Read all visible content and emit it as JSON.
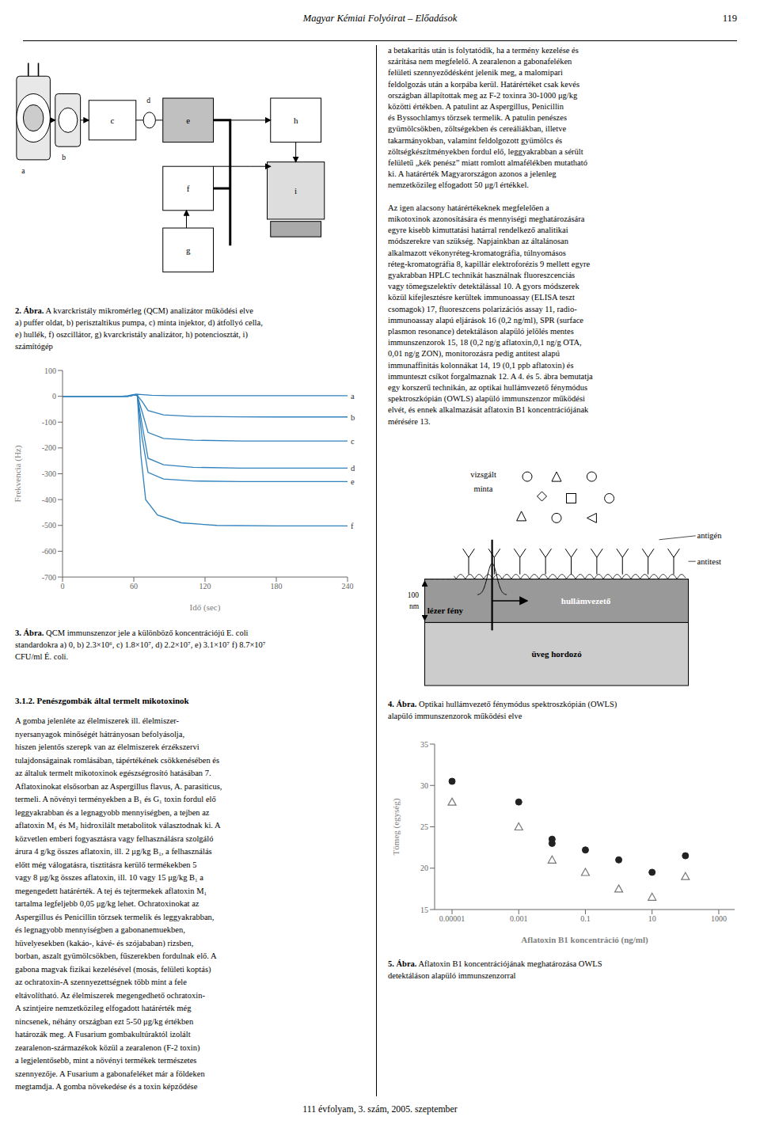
{
  "page_title": "Magyar Kémiai Folyóirat – Előadások",
  "page_number": "119",
  "footer_text": "111 évfolyam, 3. szám, 2005. szeptember",
  "section_title": "3.1.2. Penészgombák által termelt mikotoxinok",
  "left_text": [
    "A gomba jelenléte az élelmiszerek ill. élelmiszer-",
    "nyersanyagok minőségét hátrányosan befolyásolja,",
    "hiszen jelentős szerepk van az élelmiszerek érzékszervi",
    "tulajdonságainak romlásában, tápértékének csökkenésében és",
    "az általuk termelt mikotoxinok egészségrosító hatásában 7.",
    "Aflatoxinokat elsősorban az Aspergillus flavus, A. parasiticus,",
    "termeli. A növényi terményekben a B₁ és G₁ toxin fordul elő",
    "leggyakrabban és a legnagyobb mennyiségben, a tejben az",
    "aflatoxin M₁ és M₂ hidroxilált metabolitok választodnak ki. A",
    "közvetlen emberi fogyasztásra vagy felhasználásra szolgáló",
    "árura 4 g/kg összes aflatoxin, ill. 2 μg/kg B₁, a felhasználás",
    "előtt még válogatásra, tisztitásra kerülő termékekben 5",
    "vagy 8 μg/kg összes aflatoxin, ill. 10 vagy 15 μg/kg B₁ a",
    "megengedett határérték. A tej és tejtermekek aflatoxin M₁",
    "tartalma legfeljebb 0,05 μg/kg lehet. Ochratoxinokat az",
    "Aspergillus és Penicillin törzsek termelik és leggyakrabban,",
    "és legnagyobb mennyiségben a gabonanemuekben,",
    "hüvelyesekben (kakáo-, kávé- és szójababan) rizsben,",
    "borban, aszalt gyümölcsökben, fűszerekben fordulnak elő. A",
    "gabona magvak fizikai kezelésével (mosás, felületi koptás)",
    "az ochratoxin-A szennyezettségnek több mint a fele",
    "eltávolítható. Az élelmiszerek megengedhető ochratoxin-",
    "A szintjeire nemzetközileg elfogadott határérték még",
    "nincsenek, néhány országban ezt 5-50 μg/kg értékben",
    "határozák meg. A Fusarium gombakultúraktól izolált",
    "zearalenon-származékok közül a zearalenon (F-2 toxin)",
    "a legjelentősebb, mint a növényi termékek természetes",
    "szennyezője. A Fusarium a gabonafeléket már a földeken",
    "megtamdja. A gomba növekedése és a toxin képződése"
  ],
  "right_text": [
    [
      "a betakarítás után is folytatódik, ha a termény kezelése és",
      "szárítása nem megfelelő. A zearalenon a gabonafeléken",
      "felületi szennyeződésként jelenik meg, a malomipari",
      "feldolgozás után a korpába kerül. Határértéket csak kevés",
      "országban állapítottak meg az F-2 toxinra 30-1000 μg/kg",
      "közötti értékben. A patulint az Aspergillus, Penicillin",
      "és Byssochlamys törzsek termelik. A patulin penészes",
      "gyümölcsökben, zöltségekben és cereáliákban, illetve",
      "takarmányokban, valamint feldolgozott gyümölcs és",
      "zöltségkészítményekben fordul elő, leggyakrabban a sérült",
      "felületű „kék penész” miatt romlott almafélékben mutatható",
      "ki. A határérték Magyarországon azonos a jelenleg",
      "nemzetközileg elfogadott 50 μg/l értékkel."
    ],
    [
      "Az igen alacsony határértékeknek megfelelően a",
      "mikotoxinok azonosítására és mennyiségi meghatározására",
      "egyre kisebb kimuttatási határral rendelkező analitikai",
      "módszerekre van szükség. Napjainkban az általánosan",
      "alkalmazott vékonyréteg-kromatográfia, túlnyomásos",
      "réteg-kromatográfia 8, kapillár elektroforézis 9 mellett egyre",
      "gyakrabban HPLC technikát használnak fluoreszcenciás",
      "vagy tömegszelektív detektálással 10. A gyors módszerek",
      "közül kifejlesztésre kerültek immunoassay (ELISA teszt",
      "csomagok) 17, fluoreszcens polarizációs assay 11, radio-",
      "immunoassay alapú eljárások 16 (0,2 ng/ml), SPR (surface",
      "plasmon resonance) detektáláson alapüló jelölés mentes",
      "immunszenzorok 15, 18 (0,2 ng/g aflatoxin,0,1 ng/g OTA,",
      "0,01 ng/g ZON), monitorozásra pedig antitest alapú",
      "immunaffinitás kolonnákat 14, 19 (0,1 ppb aflatoxin) és",
      "immunteszt csíkot forgalmaznak 12. A 4. és 5. ábra bemutatja",
      "egy korszerű technikán, az optikai hullámvezető fénymódus",
      "spektroszkópián (OWLS) alapüló immunszenzor működési",
      "elvét, és ennek alkalmazását aflatoxin B1 koncentrációjának",
      "mérésére 13."
    ]
  ],
  "captions": [
    {
      "bold": "2. Ábra.",
      "lines": [
        "A kvarckristály mikromérleg (QCM) analizátor működési elve",
        "a) puffer oldat, b) perisztaltikus pumpa, c) minta injektor, d) átfollyó cella,",
        "e) hullék, f) oszcillátor, g) kvarckristály analizátor, h) potenciosztát, i)",
        "számítógép"
      ]
    },
    {
      "bold": "3. Ábra.",
      "lines": [
        "QCM immunszenzor jele a különböző koncentrációjú E. coli",
        "standardokra a) 0, b) 2.3×10⁶, c) 1.8×10⁷, d) 2.2×10⁷, e) 3.1×10⁷ f) 8.7×10⁷",
        "CFU/ml É. coli."
      ]
    },
    {
      "bold": "4. Ábra.",
      "lines": [
        "Optikai hullámvezető fénymódus spektroszkópián (OWLS)",
        "alapüló immunszenzorok működési elve"
      ]
    },
    {
      "bold": "5. Ábra.",
      "lines": [
        "Aflatoxin B1 koncentrációjának meghatározása OWLS",
        "detektáláson alapüló immunszenzorral"
      ]
    }
  ],
  "diagram_labels": {
    "qcm": [
      "a",
      "b",
      "c",
      "d",
      "e",
      "f",
      "g",
      "h",
      "i"
    ],
    "owls": [
      "üveg hordozó",
      "hullámvezető",
      "100",
      "nm",
      "antitest",
      "antigén",
      "vizsgált",
      "minta",
      "lézer fény"
    ]
  },
  "chart_data": [
    {
      "type": "line",
      "x_label": "Idő (sec)",
      "y_label": "Frekvencia (Hz)",
      "xlim": [
        0,
        240
      ],
      "ylim": [
        -700,
        100
      ],
      "xticks": [
        0,
        60,
        120,
        180,
        240
      ],
      "yticks": [
        100,
        0,
        -100,
        -200,
        -300,
        -400,
        -500,
        -600,
        -700
      ],
      "grid": false,
      "series": [
        {
          "name": "a",
          "x": [
            0,
            50,
            55,
            62,
            68,
            75,
            90,
            120,
            180,
            240
          ],
          "values": [
            0,
            0,
            2,
            8,
            6,
            4,
            2,
            2,
            2,
            2
          ]
        },
        {
          "name": "b",
          "x": [
            0,
            55,
            60,
            63,
            67,
            72,
            85,
            110,
            150,
            180,
            240
          ],
          "values": [
            0,
            0,
            5,
            3,
            -20,
            -55,
            -72,
            -78,
            -80,
            -80,
            -80
          ]
        },
        {
          "name": "c",
          "x": [
            0,
            55,
            60,
            63,
            67,
            72,
            85,
            110,
            150,
            180,
            240
          ],
          "values": [
            0,
            0,
            5,
            3,
            -60,
            -140,
            -163,
            -170,
            -173,
            -173,
            -173
          ]
        },
        {
          "name": "d",
          "x": [
            0,
            55,
            60,
            63,
            67,
            72,
            85,
            110,
            150,
            180,
            240
          ],
          "values": [
            0,
            0,
            5,
            3,
            -110,
            -240,
            -265,
            -275,
            -278,
            -278,
            -278
          ]
        },
        {
          "name": "e",
          "x": [
            0,
            55,
            60,
            63,
            67,
            72,
            85,
            110,
            150,
            180,
            240
          ],
          "values": [
            0,
            0,
            5,
            3,
            -160,
            -295,
            -320,
            -328,
            -330,
            -330,
            -330
          ]
        },
        {
          "name": "f",
          "x": [
            0,
            55,
            60,
            63,
            66,
            70,
            80,
            100,
            130,
            180,
            240
          ],
          "values": [
            0,
            0,
            5,
            3,
            -230,
            -400,
            -460,
            -490,
            -500,
            -502,
            -502
          ]
        }
      ]
    },
    {
      "type": "scatter",
      "log": "x",
      "x_label": "Aflatoxin B1 koncentráció (ng/ml)",
      "y_label": "Tömeg (egység)",
      "xlim": [
        3e-06,
        3000
      ],
      "ylim": [
        15,
        35
      ],
      "xticks": [
        1e-05,
        0.001,
        0.1,
        10,
        1000
      ],
      "yticks": [
        15,
        20,
        25,
        30,
        35
      ],
      "grid": false,
      "series": [
        {
          "x": [
            1e-05,
            0.001,
            0.01,
            0.01,
            0.1,
            1.0,
            10,
            100
          ],
          "values": [
            30.5,
            28.0,
            23.0,
            23.5,
            22.2,
            21.0,
            19.5,
            21.5
          ],
          "color": "#222222",
          "marker": "circle"
        },
        {
          "x": [
            1e-05,
            0.001,
            0.01,
            0.1,
            1.0,
            10,
            100
          ],
          "values": [
            28.0,
            25.0,
            21.0,
            19.5,
            17.5,
            16.5,
            19.0
          ],
          "color": "#777777",
          "marker": "triangle_open"
        }
      ]
    }
  ]
}
